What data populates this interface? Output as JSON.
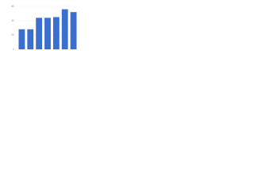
{
  "chart_data": {
    "type": "bar",
    "categories": [
      null,
      null,
      null,
      null,
      null,
      null,
      null
    ],
    "values": [
      28,
      28,
      44,
      44,
      45,
      56,
      52
    ],
    "color": "#3a6fd0",
    "ylim": [
      0,
      60
    ],
    "yticks": [
      0,
      20,
      40,
      60
    ],
    "grid": true
  }
}
